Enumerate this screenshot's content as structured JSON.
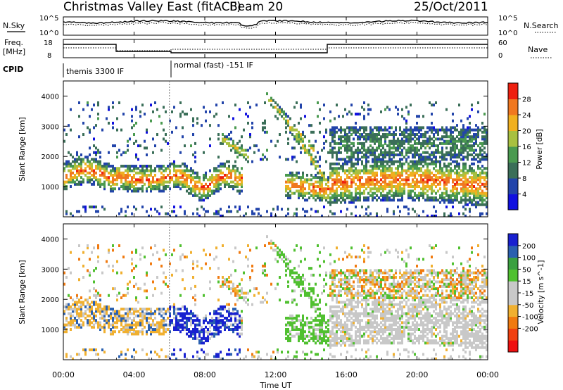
{
  "header": {
    "title": "Christmas Valley East (fitACF)",
    "beam": "Beam 20",
    "date": "25/Oct/2011"
  },
  "top_panels": {
    "nsky_label": "N.Sky",
    "nsearch_label": "N.Search",
    "nsky_ticks": [
      "10^5",
      "10^0"
    ],
    "nsky_right_ticks": [
      "10^5",
      "10^0"
    ],
    "freq_label_line1": "Freq.",
    "freq_label_line2": "[MHz]",
    "freq_ticks": [
      "18",
      "8"
    ],
    "nave_label": "Nave",
    "nave_ticks": [
      "60",
      "0"
    ],
    "cpid_label": "CPID",
    "cpid_segments": [
      "themis 3300 IF",
      "normal (fast) -151 IF"
    ]
  },
  "colors": {
    "power_scale": [
      "#1010e0",
      "#2244aa",
      "#3a6e58",
      "#4a9a50",
      "#a8c040",
      "#f0b020",
      "#f07820",
      "#ee2010"
    ],
    "velocity_scale": [
      "#ee1010",
      "#f04010",
      "#f07a10",
      "#f0b030",
      "#c8c8c8",
      "#c8c8c8",
      "#50c030",
      "#3aa040",
      "#2a60b0",
      "#1820d0"
    ]
  },
  "chart_data": [
    {
      "type": "heatmap",
      "name": "power",
      "ylabel": "Slant Range [km]",
      "yticks": [
        "1000",
        "2000",
        "3000",
        "4000"
      ],
      "ylim": [
        0,
        4500
      ],
      "colorbar_label": "Power [dB]",
      "colorbar_ticks": [
        "4",
        "8",
        "12",
        "16",
        "20",
        "24",
        "28"
      ]
    },
    {
      "type": "heatmap",
      "name": "velocity",
      "ylabel": "Slant Range [km]",
      "yticks": [
        "1000",
        "2000",
        "3000",
        "4000"
      ],
      "ylim": [
        0,
        4500
      ],
      "colorbar_label": "Velocity [m s^-1]",
      "colorbar_ticks": [
        "200",
        "100",
        "50",
        "15",
        "-15",
        "-50",
        "-100",
        "-200"
      ]
    }
  ],
  "xaxis": {
    "label": "Time UT",
    "ticks": [
      "00:00",
      "04:00",
      "08:00",
      "12:00",
      "16:00",
      "20:00",
      "00:00"
    ]
  }
}
